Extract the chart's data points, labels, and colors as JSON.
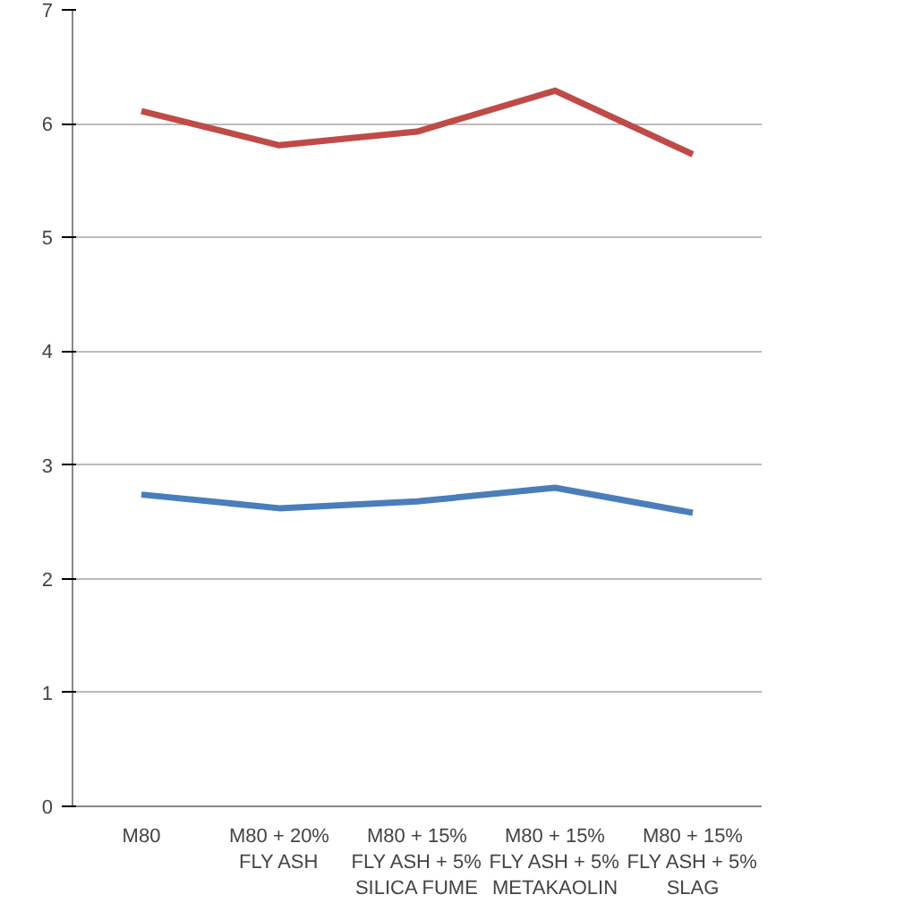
{
  "chart_data": {
    "type": "line",
    "categories": [
      "M80",
      "M80 + 20%\nFLY ASH",
      "M80 + 15%\nFLY ASH + 5%\nSILICA FUME",
      "M80 + 15%\nFLY ASH + 5%\nMETAKAOLIN",
      "M80 + 15%\nFLY ASH + 5%\nSLAG"
    ],
    "series": [
      {
        "color": "#4a7ebb",
        "values": [
          2.74,
          2.62,
          2.68,
          2.8,
          2.58
        ]
      },
      {
        "color": "#be4b48",
        "values": [
          6.11,
          5.81,
          5.93,
          6.29,
          5.73
        ]
      }
    ],
    "ylim": [
      0,
      7
    ],
    "yticks": [
      0,
      1,
      2,
      3,
      4,
      5,
      6,
      7
    ],
    "grid": "y",
    "marker": "none",
    "line_style": "solid"
  }
}
